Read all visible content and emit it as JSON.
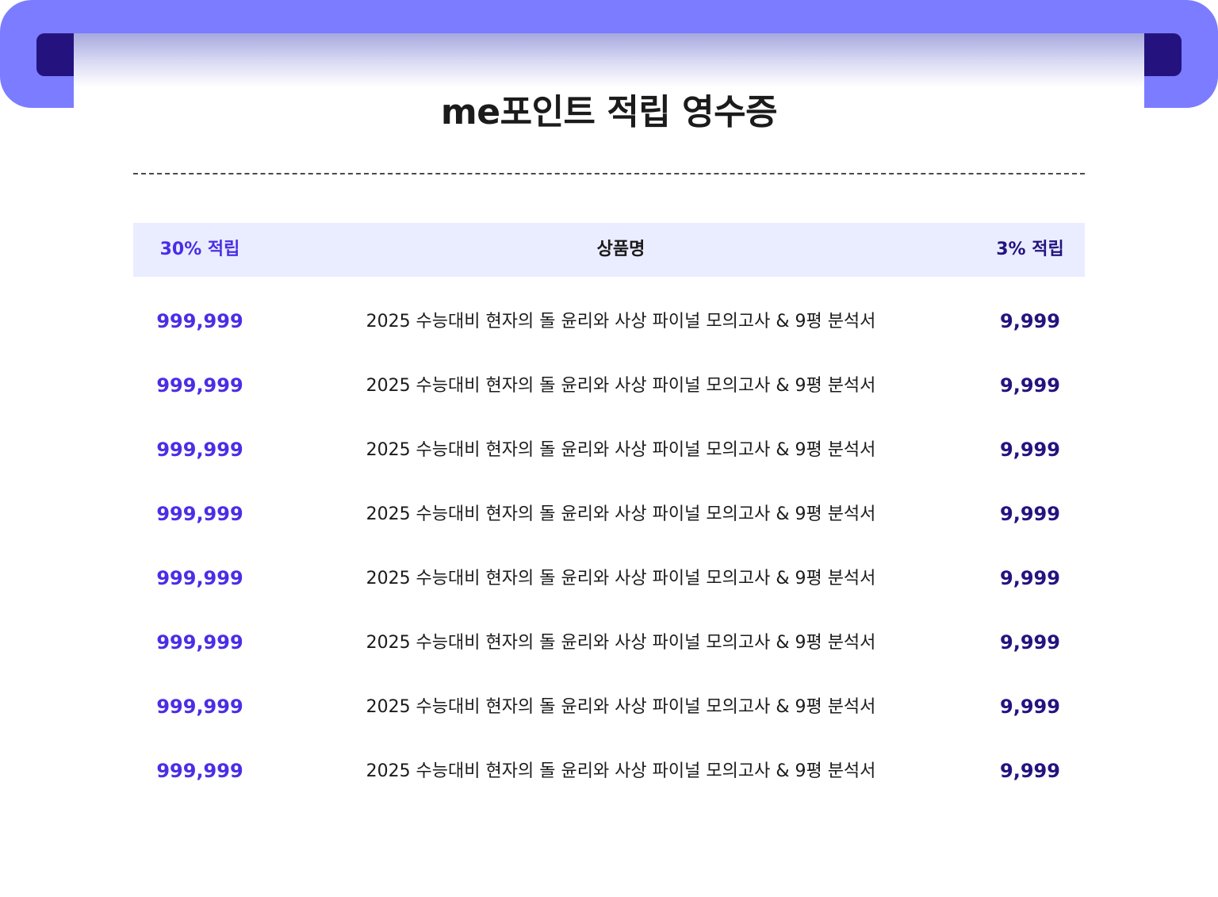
{
  "receipt": {
    "title": "me포인트 적립 영수증"
  },
  "table": {
    "headers": {
      "left": "30% 적립",
      "middle": "상품명",
      "right": "3% 적립"
    },
    "rows": [
      {
        "points_30": "999,999",
        "product": "2025 수능대비 현자의 돌 윤리와 사상 파이널 모의고사 & 9평 분석서",
        "points_3": "9,999"
      },
      {
        "points_30": "999,999",
        "product": "2025 수능대비 현자의 돌 윤리와 사상 파이널 모의고사 & 9평 분석서",
        "points_3": "9,999"
      },
      {
        "points_30": "999,999",
        "product": "2025 수능대비 현자의 돌 윤리와 사상 파이널 모의고사 & 9평 분석서",
        "points_3": "9,999"
      },
      {
        "points_30": "999,999",
        "product": "2025 수능대비 현자의 돌 윤리와 사상 파이널 모의고사 & 9평 분석서",
        "points_3": "9,999"
      },
      {
        "points_30": "999,999",
        "product": "2025 수능대비 현자의 돌 윤리와 사상 파이널 모의고사 & 9평 분석서",
        "points_3": "9,999"
      },
      {
        "points_30": "999,999",
        "product": "2025 수능대비 현자의 돌 윤리와 사상 파이널 모의고사 & 9평 분석서",
        "points_3": "9,999"
      },
      {
        "points_30": "999,999",
        "product": "2025 수능대비 현자의 돌 윤리와 사상 파이널 모의고사 & 9평 분석서",
        "points_3": "9,999"
      },
      {
        "points_30": "999,999",
        "product": "2025 수능대비 현자의 돌 윤리와 사상 파이널 모의고사 & 9평 분석서",
        "points_3": "9,999"
      }
    ]
  },
  "colors": {
    "band": "#7b7cff",
    "slot": "#24137f",
    "accent_30": "#4a2ee6",
    "accent_3": "#24137f",
    "header_bg": "#eaedff"
  }
}
